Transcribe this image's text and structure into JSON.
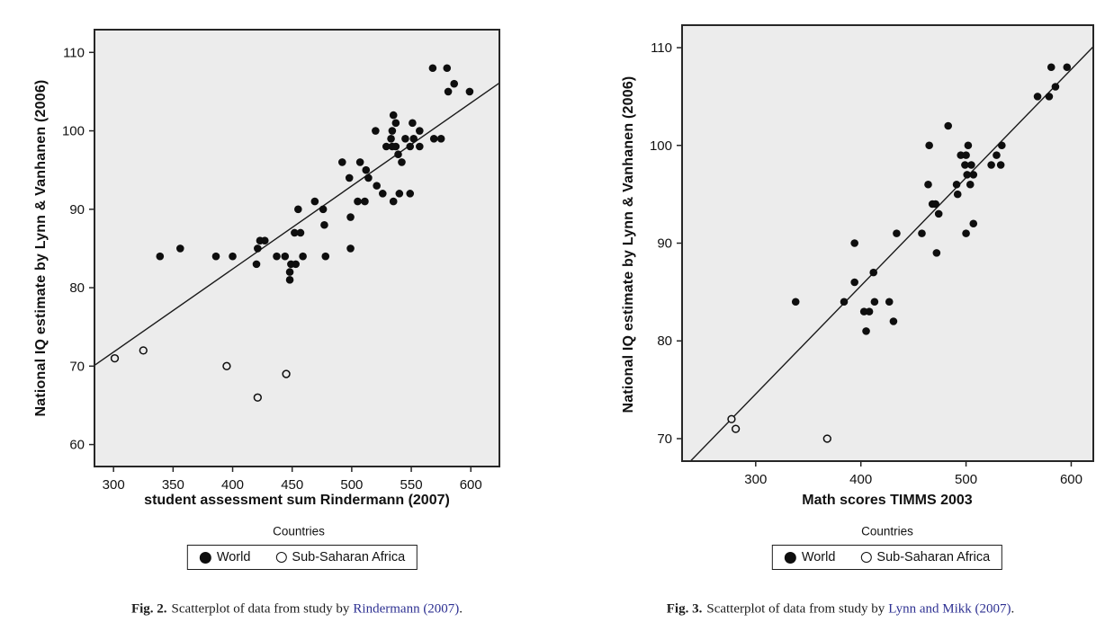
{
  "colors": {
    "plot_bg": "#ececec",
    "axis": "#262626",
    "line": "#1a1a1a",
    "marker": "#0e0e0e",
    "link": "#2e3192"
  },
  "figures": [
    {
      "ylabel": "National IQ estimate by Lynn & Vanhanen (2006)",
      "xlabel": "student assessment sum Rindermann (2007)",
      "legend": {
        "title": "Countries",
        "world_label": "World",
        "ssa_label": "Sub-Saharan Africa"
      },
      "caption": {
        "label": "Fig. 2.",
        "text": "Scatterplot of data from study by",
        "link": "Rindermann (2007)",
        "suffix": "."
      }
    },
    {
      "ylabel": "National IQ estimate by Lynn & Vanhanen (2006)",
      "xlabel": "Math scores TIMMS 2003",
      "legend": {
        "title": "Countries",
        "world_label": "World",
        "ssa_label": "Sub-Saharan Africa"
      },
      "caption": {
        "label": "Fig. 3.",
        "text": "Scatterplot of data from study by",
        "link": "Lynn and Mikk (2007)",
        "suffix": "."
      }
    }
  ],
  "chart_data": [
    {
      "type": "scatter",
      "title": "",
      "xlabel": "student assessment sum Rindermann (2007)",
      "ylabel": "National IQ estimate by Lynn & Vanhanen (2006)",
      "xlim": [
        284,
        624
      ],
      "ylim": [
        57.2,
        112.9
      ],
      "xticks": [
        300,
        350,
        400,
        450,
        500,
        550,
        600
      ],
      "yticks": [
        60,
        70,
        80,
        90,
        100,
        110
      ],
      "grid": false,
      "legend_position": "bottom",
      "fit_line": {
        "x1": 284,
        "y1": 70.1,
        "x2": 624,
        "y2": 106.1
      },
      "series": [
        {
          "name": "World",
          "marker": "filled-circle",
          "points": [
            [
              339,
              84
            ],
            [
              356,
              85
            ],
            [
              386,
              84
            ],
            [
              400,
              84
            ],
            [
              420,
              83
            ],
            [
              421,
              85
            ],
            [
              423,
              86
            ],
            [
              427,
              86
            ],
            [
              437,
              84
            ],
            [
              444,
              84
            ],
            [
              448,
              81
            ],
            [
              448,
              82
            ],
            [
              449,
              83
            ],
            [
              453,
              83
            ],
            [
              452,
              87
            ],
            [
              457,
              87
            ],
            [
              459,
              84
            ],
            [
              478,
              84
            ],
            [
              499,
              85
            ],
            [
              455,
              90
            ],
            [
              469,
              91
            ],
            [
              476,
              90
            ],
            [
              477,
              88
            ],
            [
              492,
              96
            ],
            [
              498,
              94
            ],
            [
              499,
              89
            ],
            [
              505,
              91
            ],
            [
              507,
              96
            ],
            [
              511,
              91
            ],
            [
              512,
              95
            ],
            [
              514,
              94
            ],
            [
              521,
              93
            ],
            [
              526,
              92
            ],
            [
              535,
              91
            ],
            [
              539,
              97
            ],
            [
              540,
              92
            ],
            [
              542,
              96
            ],
            [
              549,
              92
            ],
            [
              520,
              100
            ],
            [
              529,
              98
            ],
            [
              533,
              99
            ],
            [
              534,
              98
            ],
            [
              534,
              100
            ],
            [
              535,
              102
            ],
            [
              537,
              101
            ],
            [
              537,
              98
            ],
            [
              545,
              99
            ],
            [
              549,
              98
            ],
            [
              551,
              101
            ],
            [
              552,
              99
            ],
            [
              557,
              98
            ],
            [
              557,
              100
            ],
            [
              569,
              99
            ],
            [
              575,
              99
            ],
            [
              568,
              108
            ],
            [
              580,
              108
            ],
            [
              581,
              105
            ],
            [
              586,
              106
            ],
            [
              599,
              105
            ]
          ]
        },
        {
          "name": "Sub-Saharan Africa",
          "marker": "open-circle",
          "points": [
            [
              301,
              71
            ],
            [
              325,
              72
            ],
            [
              395,
              70
            ],
            [
              421,
              66
            ],
            [
              445,
              69
            ]
          ]
        }
      ]
    },
    {
      "type": "scatter",
      "title": "",
      "xlabel": "Math scores TIMMS 2003",
      "ylabel": "National IQ estimate by Lynn & Vanhanen (2006)",
      "xlim": [
        230,
        621
      ],
      "ylim": [
        67.7,
        112.3
      ],
      "xticks": [
        300,
        400,
        500,
        600
      ],
      "yticks": [
        70,
        80,
        90,
        100,
        110
      ],
      "grid": false,
      "legend_position": "bottom",
      "fit_line": {
        "x1": 238,
        "y1": 67.7,
        "x2": 621,
        "y2": 110.1
      },
      "series": [
        {
          "name": "World",
          "marker": "filled-circle",
          "points": [
            [
              338,
              84
            ],
            [
              384,
              84
            ],
            [
              403,
              83
            ],
            [
              405,
              81
            ],
            [
              408,
              83
            ],
            [
              413,
              84
            ],
            [
              427,
              84
            ],
            [
              431,
              82
            ],
            [
              394,
              86
            ],
            [
              412,
              87
            ],
            [
              394,
              90
            ],
            [
              434,
              91
            ],
            [
              458,
              91
            ],
            [
              472,
              89
            ],
            [
              500,
              91
            ],
            [
              464,
              96
            ],
            [
              468,
              94
            ],
            [
              471,
              94
            ],
            [
              474,
              93
            ],
            [
              491,
              96
            ],
            [
              492,
              95
            ],
            [
              504,
              96
            ],
            [
              507,
              92
            ],
            [
              465,
              100
            ],
            [
              483,
              102
            ],
            [
              495,
              99
            ],
            [
              500,
              99
            ],
            [
              499,
              98
            ],
            [
              505,
              98
            ],
            [
              501,
              97
            ],
            [
              507,
              97
            ],
            [
              502,
              100
            ],
            [
              524,
              98
            ],
            [
              529,
              99
            ],
            [
              533,
              98
            ],
            [
              534,
              100
            ],
            [
              568,
              105
            ],
            [
              579,
              105
            ],
            [
              585,
              106
            ],
            [
              581,
              108
            ],
            [
              596,
              108
            ]
          ]
        },
        {
          "name": "Sub-Saharan Africa",
          "marker": "open-circle",
          "points": [
            [
              277,
              72
            ],
            [
              281,
              71
            ],
            [
              368,
              70
            ]
          ]
        }
      ]
    }
  ]
}
